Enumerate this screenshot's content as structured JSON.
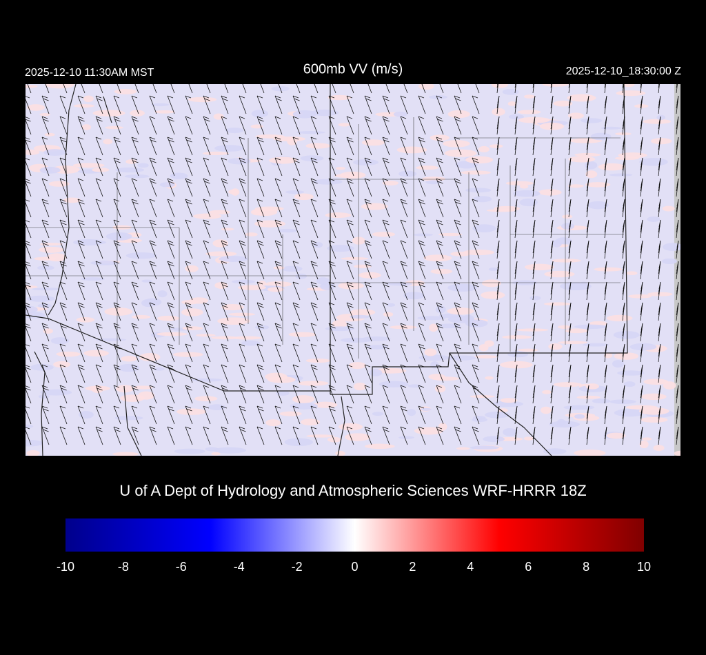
{
  "header": {
    "local_time": "2025-12-10 11:30AM MST",
    "title": "600mb VV (m/s)",
    "utc_time": "2025-12-10_18:30:00 Z"
  },
  "credit": "U of A Dept of Hydrology and Atmospheric Sciences WRF-HRRR 18Z",
  "colorbar": {
    "range": [
      -10,
      10
    ],
    "ticks": [
      -10,
      -8,
      -6,
      -4,
      -2,
      0,
      2,
      4,
      6,
      8,
      10
    ],
    "colors": [
      "#00008b",
      "#0000ff",
      "#ffffff",
      "#ff0000",
      "#800000"
    ]
  }
}
